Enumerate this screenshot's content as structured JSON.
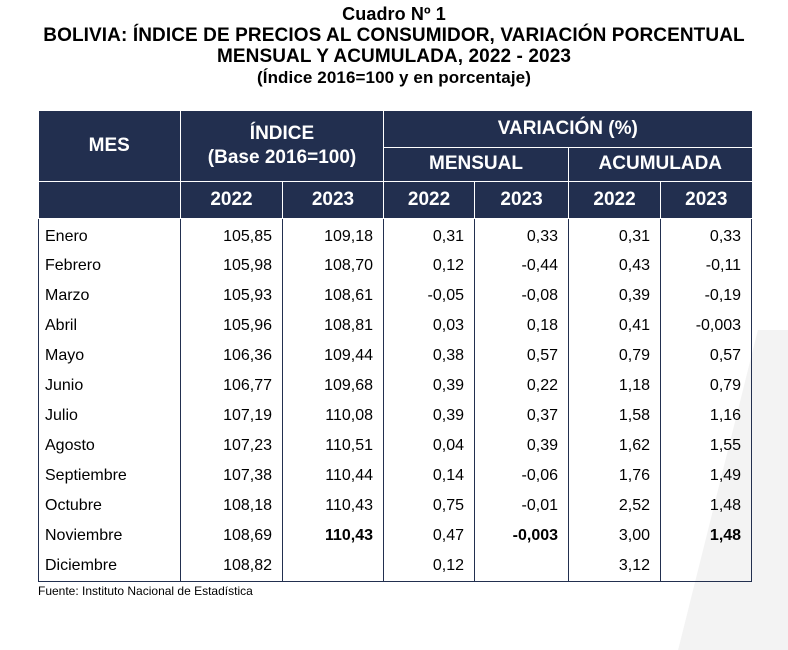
{
  "title": {
    "line1": "Cuadro Nº 1",
    "line2": "BOLIVIA: ÍNDICE DE PRECIOS AL CONSUMIDOR, VARIACIÓN PORCENTUAL",
    "line3": "MENSUAL Y ACUMULADA, 2022 - 2023",
    "line4": "(Índice 2016=100 y en porcentaje)"
  },
  "header": {
    "mes": "MES",
    "indice_line1": "ÍNDICE",
    "indice_line2": "(Base 2016=100)",
    "variacion": "VARIACIÓN (%)",
    "mensual": "MENSUAL",
    "acumulada": "ACUMULADA",
    "years": [
      "2022",
      "2023",
      "2022",
      "2023",
      "2022",
      "2023"
    ]
  },
  "rows": [
    {
      "mes": "Enero",
      "i2022": "105,85",
      "i2023": "109,18",
      "m2022": "0,31",
      "m2023": "0,33",
      "a2022": "0,31",
      "a2023": "0,33"
    },
    {
      "mes": "Febrero",
      "i2022": "105,98",
      "i2023": "108,70",
      "m2022": "0,12",
      "m2023": "-0,44",
      "a2022": "0,43",
      "a2023": "-0,11"
    },
    {
      "mes": "Marzo",
      "i2022": "105,93",
      "i2023": "108,61",
      "m2022": "-0,05",
      "m2023": "-0,08",
      "a2022": "0,39",
      "a2023": "-0,19"
    },
    {
      "mes": "Abril",
      "i2022": "105,96",
      "i2023": "108,81",
      "m2022": "0,03",
      "m2023": "0,18",
      "a2022": "0,41",
      "a2023": "-0,003"
    },
    {
      "mes": "Mayo",
      "i2022": "106,36",
      "i2023": "109,44",
      "m2022": "0,38",
      "m2023": "0,57",
      "a2022": "0,79",
      "a2023": "0,57"
    },
    {
      "mes": "Junio",
      "i2022": "106,77",
      "i2023": "109,68",
      "m2022": "0,39",
      "m2023": "0,22",
      "a2022": "1,18",
      "a2023": "0,79"
    },
    {
      "mes": "Julio",
      "i2022": "107,19",
      "i2023": "110,08",
      "m2022": "0,39",
      "m2023": "0,37",
      "a2022": "1,58",
      "a2023": "1,16"
    },
    {
      "mes": "Agosto",
      "i2022": "107,23",
      "i2023": "110,51",
      "m2022": "0,04",
      "m2023": "0,39",
      "a2022": "1,62",
      "a2023": "1,55"
    },
    {
      "mes": "Septiembre",
      "i2022": "107,38",
      "i2023": "110,44",
      "m2022": "0,14",
      "m2023": "-0,06",
      "a2022": "1,76",
      "a2023": "1,49"
    },
    {
      "mes": "Octubre",
      "i2022": "108,18",
      "i2023": "110,43",
      "m2022": "0,75",
      "m2023": "-0,01",
      "a2022": "2,52",
      "a2023": "1,48"
    },
    {
      "mes": "Noviembre",
      "i2022": "108,69",
      "i2023": "110,43",
      "m2022": "0,47",
      "m2023": "-0,003",
      "a2022": "3,00",
      "a2023": "1,48"
    },
    {
      "mes": "Diciembre",
      "i2022": "108,82",
      "i2023": "",
      "m2022": "0,12",
      "m2023": "",
      "a2022": "3,12",
      "a2023": ""
    }
  ],
  "source": "Fuente: Instituto Nacional de Estadística",
  "colors": {
    "header_bg": "#222f4f",
    "header_text": "#ffffff"
  }
}
